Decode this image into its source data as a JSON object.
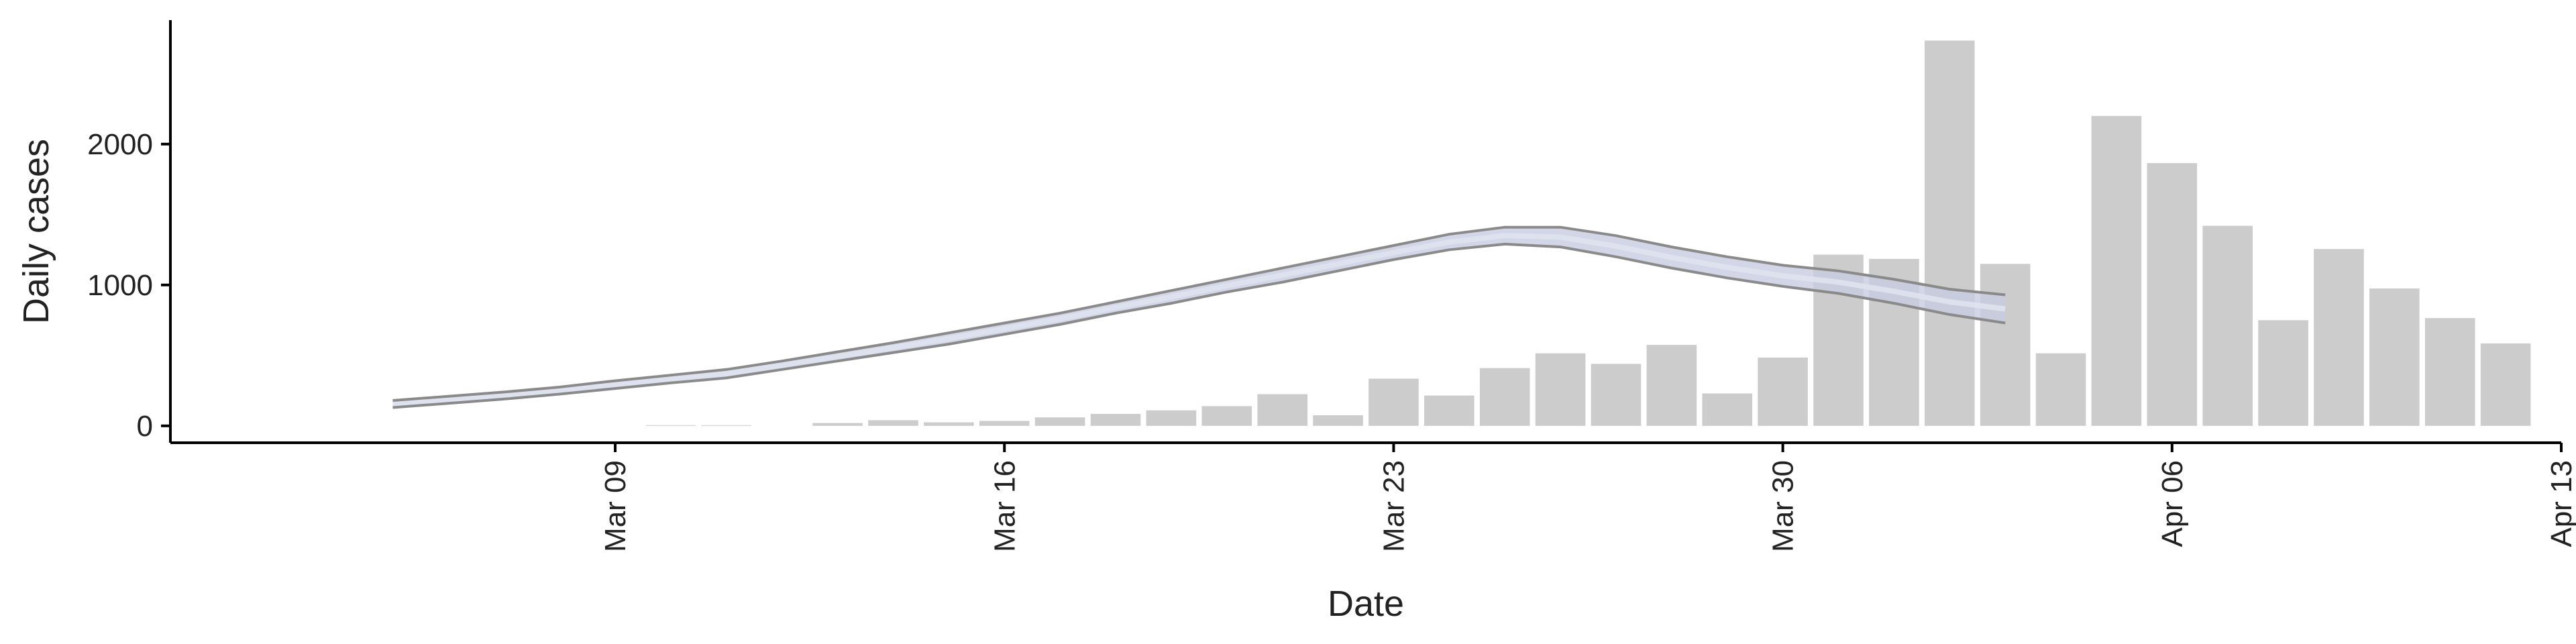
{
  "chart_data": {
    "type": "bar",
    "xlabel": "Date",
    "ylabel": "Daily cases",
    "x_axis": {
      "type": "date",
      "range": [
        "2020-03-01",
        "2020-04-13"
      ],
      "ticks": [
        {
          "date": "2020-03-09",
          "label": "Mar 09"
        },
        {
          "date": "2020-03-16",
          "label": "Mar 16"
        },
        {
          "date": "2020-03-23",
          "label": "Mar 23"
        },
        {
          "date": "2020-03-30",
          "label": "Mar 30"
        },
        {
          "date": "2020-04-06",
          "label": "Apr 06"
        },
        {
          "date": "2020-04-13",
          "label": "Apr 13"
        }
      ]
    },
    "y_axis": {
      "range": [
        -120,
        2880
      ],
      "ticks": [
        {
          "value": 0,
          "label": "0"
        },
        {
          "value": 1000,
          "label": "1000"
        },
        {
          "value": 2000,
          "label": "2000"
        }
      ]
    },
    "grid": false,
    "bars": {
      "color": "#cccccc",
      "dates": [
        "2020-03-10",
        "2020-03-11",
        "2020-03-12",
        "2020-03-13",
        "2020-03-14",
        "2020-03-15",
        "2020-03-16",
        "2020-03-17",
        "2020-03-18",
        "2020-03-19",
        "2020-03-20",
        "2020-03-21",
        "2020-03-22",
        "2020-03-23",
        "2020-03-24",
        "2020-03-25",
        "2020-03-26",
        "2020-03-27",
        "2020-03-28",
        "2020-03-29",
        "2020-03-30",
        "2020-03-31",
        "2020-04-01",
        "2020-04-02",
        "2020-04-03",
        "2020-04-04",
        "2020-04-05",
        "2020-04-06",
        "2020-04-07",
        "2020-04-08",
        "2020-04-09",
        "2020-04-10",
        "2020-04-11",
        "2020-04-12"
      ],
      "values": [
        5,
        5,
        0,
        20,
        40,
        25,
        35,
        60,
        85,
        110,
        140,
        225,
        75,
        335,
        215,
        410,
        515,
        440,
        575,
        230,
        485,
        1215,
        1185,
        2735,
        1150,
        515,
        2200,
        1865,
        1420,
        750,
        1255,
        975,
        765,
        585
      ]
    },
    "curve": {
      "line_color": "#8a8a8a",
      "band_color": "#c7cce0",
      "dates": [
        "2020-03-05",
        "2020-03-06",
        "2020-03-07",
        "2020-03-08",
        "2020-03-09",
        "2020-03-10",
        "2020-03-11",
        "2020-03-12",
        "2020-03-13",
        "2020-03-14",
        "2020-03-15",
        "2020-03-16",
        "2020-03-17",
        "2020-03-18",
        "2020-03-19",
        "2020-03-20",
        "2020-03-21",
        "2020-03-22",
        "2020-03-23",
        "2020-03-24",
        "2020-03-25",
        "2020-03-26",
        "2020-03-27",
        "2020-03-28",
        "2020-03-29",
        "2020-03-30",
        "2020-03-31",
        "2020-04-01",
        "2020-04-02",
        "2020-04-03"
      ],
      "upper": [
        180,
        210,
        240,
        275,
        320,
        360,
        400,
        460,
        525,
        590,
        660,
        730,
        800,
        880,
        960,
        1040,
        1120,
        1200,
        1280,
        1360,
        1410,
        1410,
        1350,
        1270,
        1200,
        1140,
        1100,
        1040,
        970,
        930
      ],
      "lower": [
        130,
        160,
        190,
        225,
        265,
        305,
        340,
        400,
        460,
        520,
        580,
        650,
        720,
        800,
        870,
        950,
        1020,
        1100,
        1180,
        1250,
        1290,
        1270,
        1200,
        1120,
        1050,
        990,
        940,
        870,
        790,
        730
      ]
    }
  }
}
